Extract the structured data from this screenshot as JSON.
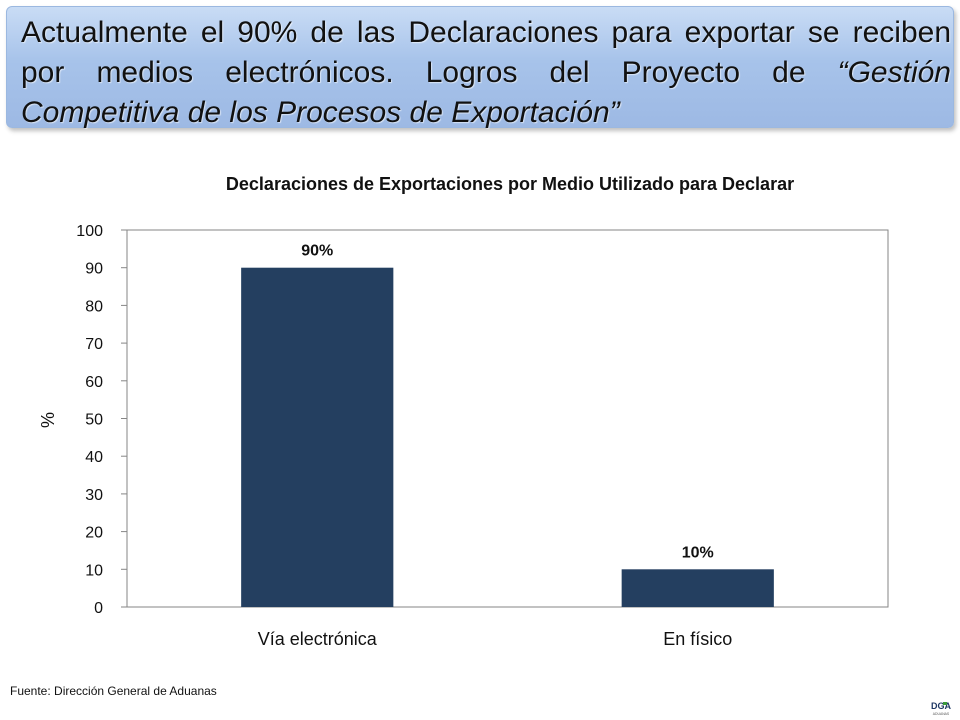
{
  "header": {
    "text_main": "Actualmente el 90% de las Declaraciones para exportar se reciben por medios electrónicos. Logros del Proyecto de",
    "text_italic": "“Gestión Competitiva de los Procesos de Exportación”"
  },
  "chart_data": {
    "type": "bar",
    "title": "Declaraciones de Exportaciones por Medio Utilizado para Declarar",
    "categories": [
      "Vía electrónica",
      "En físico"
    ],
    "values": [
      90,
      10
    ],
    "data_labels": [
      "90%",
      "10%"
    ],
    "ylabel": "%",
    "xlabel": "",
    "ylim": [
      0,
      100
    ],
    "yticks": [
      "0",
      "10",
      "20",
      "30",
      "40",
      "50",
      "60",
      "70",
      "80",
      "90",
      "100"
    ],
    "grid": false,
    "bar_color": "#243f60"
  },
  "footer": {
    "source": "Fuente: Dirección General de Aduanas"
  },
  "logo": {
    "icon": "dga-logo-icon",
    "text": "DGA",
    "subtext": "ADUANAS"
  }
}
